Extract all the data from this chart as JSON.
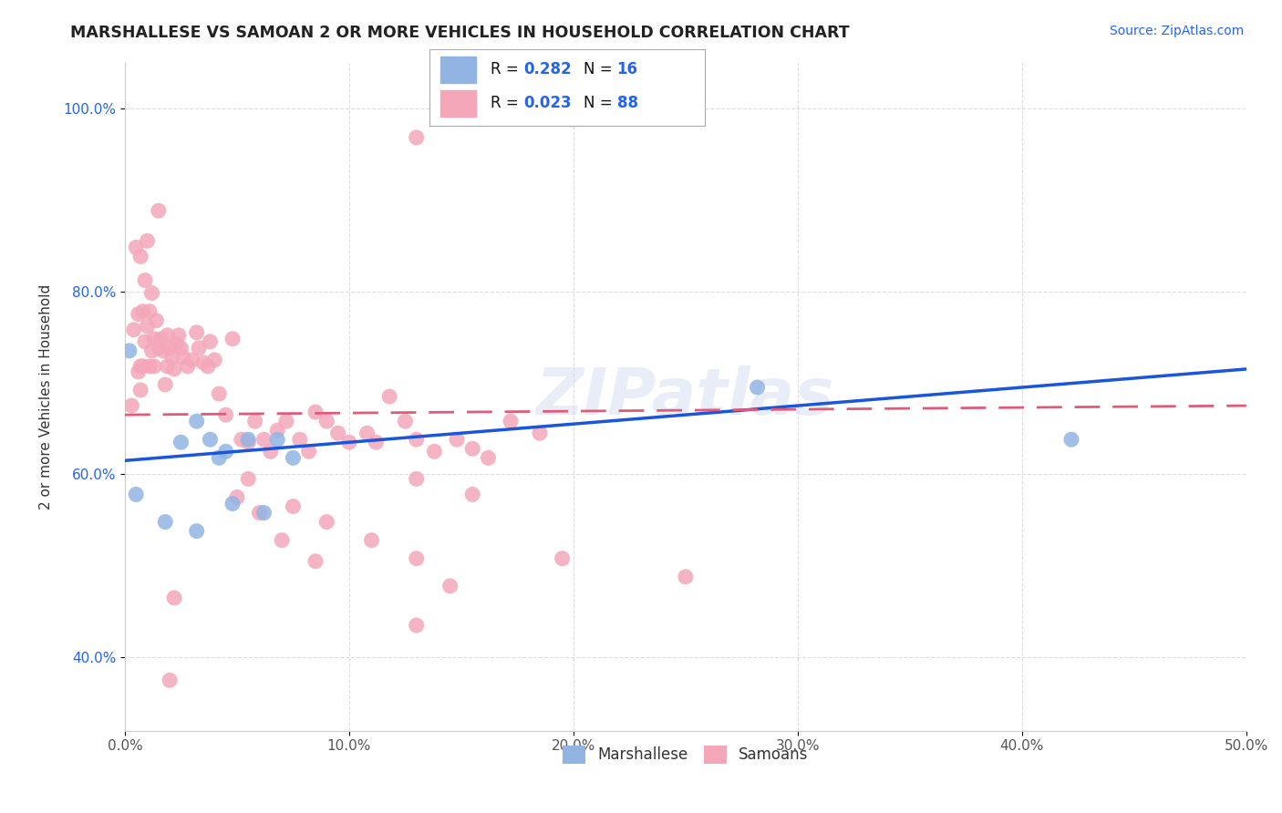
{
  "title": "MARSHALLESE VS SAMOAN 2 OR MORE VEHICLES IN HOUSEHOLD CORRELATION CHART",
  "source": "Source: ZipAtlas.com",
  "ylabel": "2 or more Vehicles in Household",
  "xlim": [
    0.0,
    0.5
  ],
  "ylim": [
    0.32,
    1.05
  ],
  "xticks": [
    0.0,
    0.1,
    0.2,
    0.3,
    0.4,
    0.5
  ],
  "xticklabels": [
    "0.0%",
    "10.0%",
    "20.0%",
    "30.0%",
    "40.0%",
    "50.0%"
  ],
  "yticks": [
    0.4,
    0.6,
    0.8,
    1.0
  ],
  "yticklabels": [
    "40.0%",
    "60.0%",
    "80.0%",
    "100.0%"
  ],
  "legend_label_blue": "Marshallese",
  "legend_label_pink": "Samoans",
  "blue_color": "#92b4e3",
  "pink_color": "#f4a7b9",
  "blue_line_color": "#1a56db",
  "pink_line_color": "#e05a7a",
  "text_blue_color": "#2563eb",
  "watermark": "ZIPatlas",
  "blue_r": "0.282",
  "blue_n": "16",
  "pink_r": "0.023",
  "pink_n": "88",
  "blue_x": [
    0.002,
    0.005,
    0.018,
    0.025,
    0.032,
    0.038,
    0.042,
    0.048,
    0.055,
    0.062,
    0.068,
    0.075,
    0.032,
    0.045,
    0.282,
    0.422
  ],
  "blue_y": [
    0.735,
    0.578,
    0.548,
    0.635,
    0.658,
    0.638,
    0.618,
    0.568,
    0.638,
    0.558,
    0.638,
    0.618,
    0.538,
    0.625,
    0.695,
    0.638
  ],
  "pink_x": [
    0.003,
    0.004,
    0.005,
    0.006,
    0.006,
    0.007,
    0.007,
    0.007,
    0.008,
    0.008,
    0.009,
    0.009,
    0.01,
    0.01,
    0.011,
    0.011,
    0.012,
    0.012,
    0.013,
    0.013,
    0.014,
    0.015,
    0.015,
    0.016,
    0.017,
    0.018,
    0.019,
    0.019,
    0.02,
    0.021,
    0.022,
    0.023,
    0.024,
    0.025,
    0.026,
    0.028,
    0.03,
    0.032,
    0.033,
    0.035,
    0.037,
    0.038,
    0.04,
    0.042,
    0.045,
    0.048,
    0.052,
    0.055,
    0.058,
    0.062,
    0.065,
    0.068,
    0.072,
    0.078,
    0.082,
    0.085,
    0.09,
    0.095,
    0.1,
    0.108,
    0.112,
    0.118,
    0.125,
    0.13,
    0.138,
    0.148,
    0.155,
    0.162,
    0.172,
    0.185,
    0.13,
    0.155,
    0.05,
    0.06,
    0.075,
    0.09,
    0.11,
    0.13,
    0.07,
    0.085,
    0.13,
    0.145,
    0.055,
    0.13,
    0.022,
    0.02,
    0.195,
    0.25
  ],
  "pink_y": [
    0.675,
    0.758,
    0.848,
    0.712,
    0.775,
    0.838,
    0.718,
    0.692,
    0.778,
    0.718,
    0.812,
    0.745,
    0.855,
    0.762,
    0.778,
    0.718,
    0.798,
    0.735,
    0.748,
    0.718,
    0.768,
    0.738,
    0.888,
    0.748,
    0.735,
    0.698,
    0.718,
    0.752,
    0.738,
    0.728,
    0.715,
    0.742,
    0.752,
    0.738,
    0.728,
    0.718,
    0.725,
    0.755,
    0.738,
    0.722,
    0.718,
    0.745,
    0.725,
    0.688,
    0.665,
    0.748,
    0.638,
    0.635,
    0.658,
    0.638,
    0.625,
    0.648,
    0.658,
    0.638,
    0.625,
    0.668,
    0.658,
    0.645,
    0.635,
    0.645,
    0.635,
    0.685,
    0.658,
    0.638,
    0.625,
    0.638,
    0.628,
    0.618,
    0.658,
    0.645,
    0.595,
    0.578,
    0.575,
    0.558,
    0.565,
    0.548,
    0.528,
    0.508,
    0.528,
    0.505,
    0.435,
    0.478,
    0.595,
    0.968,
    0.465,
    0.375,
    0.508,
    0.488
  ]
}
